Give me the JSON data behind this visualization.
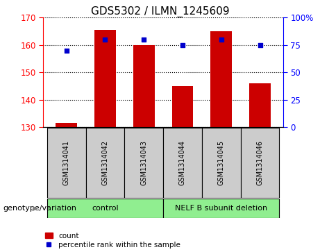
{
  "title": "GDS5302 / ILMN_1245609",
  "samples": [
    "GSM1314041",
    "GSM1314042",
    "GSM1314043",
    "GSM1314044",
    "GSM1314045",
    "GSM1314046"
  ],
  "counts": [
    131.5,
    165.5,
    160.0,
    145.0,
    165.0,
    146.0
  ],
  "percentiles": [
    70.0,
    80.0,
    80.0,
    75.0,
    80.0,
    75.0
  ],
  "ylim_left": [
    130,
    170
  ],
  "ylim_right": [
    0,
    100
  ],
  "yticks_left": [
    130,
    140,
    150,
    160,
    170
  ],
  "yticks_right": [
    0,
    25,
    50,
    75,
    100
  ],
  "bar_color": "#CC0000",
  "dot_color": "#0000CC",
  "bar_bottom": 130,
  "bar_width": 0.55,
  "title_fontsize": 11,
  "tick_fontsize": 8.5,
  "label_fontsize": 8,
  "sample_label_fontsize": 7,
  "group_label_fontsize": 8,
  "legend_fontsize": 7.5,
  "ctrl_samples": 3,
  "nelf_samples": 3,
  "ctrl_label": "control",
  "nelf_label": "NELF B subunit deletion",
  "gray_color": "#CCCCCC",
  "green_color": "#90EE90",
  "genotype_label": "genotype/variation"
}
